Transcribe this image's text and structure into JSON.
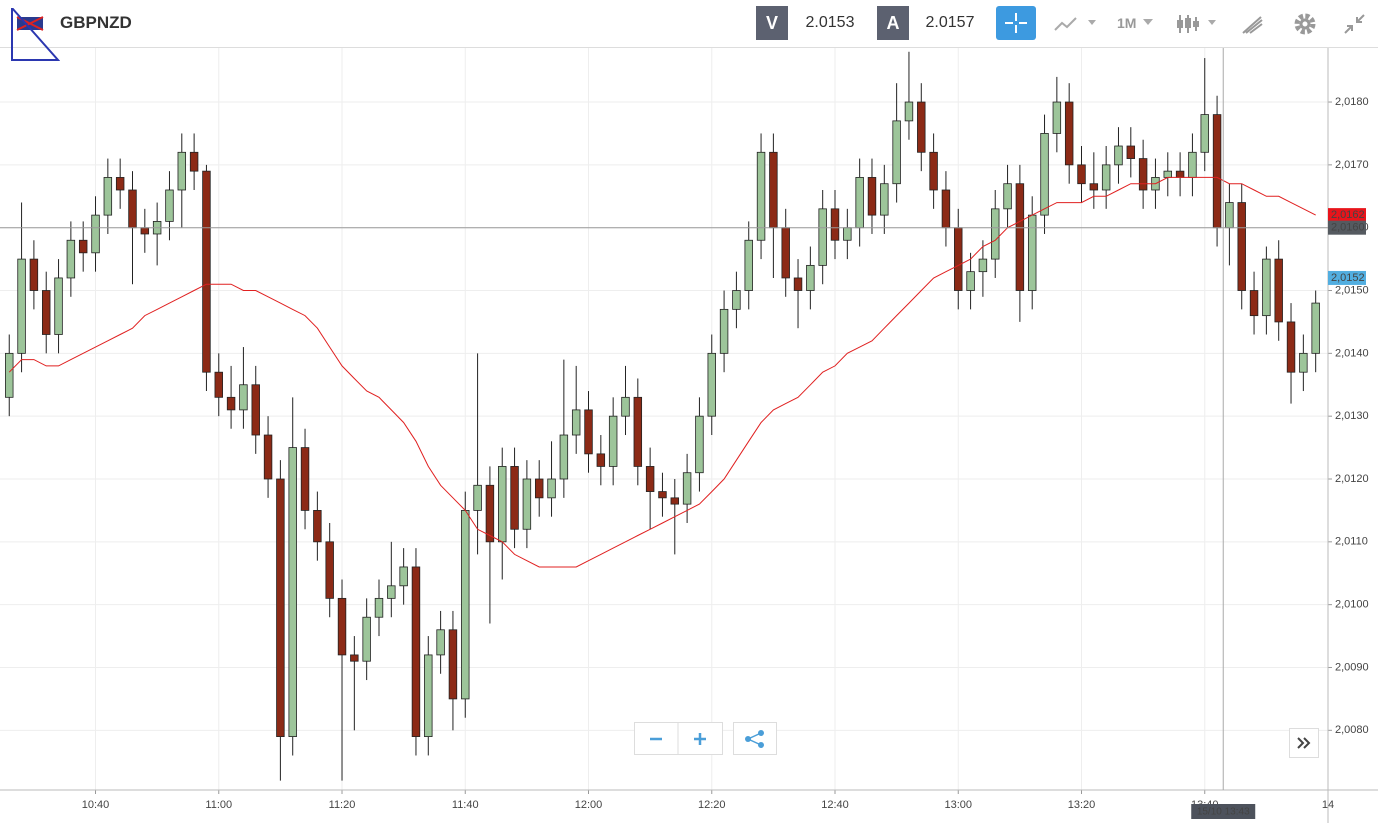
{
  "toolbar": {
    "symbol": "GBPNZD",
    "bid_label": "V",
    "bid": "2.0153",
    "ask_label": "A",
    "ask": "2.0157",
    "timeframe": "1M"
  },
  "chart_data": {
    "type": "candlestick",
    "x": [
      626,
      628,
      630,
      632,
      634,
      636,
      638,
      640,
      642,
      644,
      646,
      648,
      650,
      652,
      654,
      656,
      658,
      660,
      662,
      664,
      666,
      668,
      670,
      672,
      674,
      676,
      678,
      680,
      682,
      684,
      686,
      688,
      690,
      692,
      694,
      696,
      698,
      700,
      702,
      704,
      706,
      708,
      710,
      712,
      714,
      716,
      718,
      720,
      722,
      724,
      726,
      728,
      730,
      732,
      734,
      736,
      738,
      740,
      742,
      744,
      746,
      748,
      750,
      752,
      754,
      756,
      758,
      760,
      762,
      764,
      766,
      768,
      770,
      772,
      774,
      776,
      778,
      780,
      782,
      784,
      786,
      788,
      790,
      792,
      794,
      796,
      798,
      800,
      802,
      804,
      806,
      808,
      810,
      812,
      814,
      816,
      818,
      820,
      822,
      824,
      826,
      828,
      830,
      832,
      834,
      836,
      838
    ],
    "open": [
      2.0133,
      2.014,
      2.0155,
      2.015,
      2.0143,
      2.0152,
      2.0158,
      2.0156,
      2.0162,
      2.0168,
      2.0166,
      2.016,
      2.0159,
      2.0161,
      2.0166,
      2.0172,
      2.0169,
      2.0137,
      2.0133,
      2.0131,
      2.0135,
      2.0127,
      2.012,
      2.0079,
      2.0125,
      2.0115,
      2.011,
      2.0101,
      2.0092,
      2.0091,
      2.0098,
      2.0101,
      2.0103,
      2.0106,
      2.0079,
      2.0092,
      2.0096,
      2.0085,
      2.0115,
      2.0119,
      2.011,
      2.0122,
      2.0112,
      2.012,
      2.0117,
      2.012,
      2.0127,
      2.0131,
      2.0124,
      2.0122,
      2.013,
      2.0133,
      2.0122,
      2.0118,
      2.0117,
      2.0116,
      2.0121,
      2.013,
      2.014,
      2.0147,
      2.015,
      2.0158,
      2.0172,
      2.016,
      2.0152,
      2.015,
      2.0154,
      2.0163,
      2.0158,
      2.016,
      2.0168,
      2.0162,
      2.0167,
      2.0177,
      2.018,
      2.0172,
      2.0166,
      2.016,
      2.015,
      2.0153,
      2.0155,
      2.0163,
      2.0167,
      2.015,
      2.0162,
      2.0175,
      2.018,
      2.017,
      2.0167,
      2.0166,
      2.017,
      2.0173,
      2.0171,
      2.0166,
      2.0168,
      2.0169,
      2.0168,
      2.0172,
      2.0178,
      2.016,
      2.0164,
      2.015,
      2.0146,
      2.0155,
      2.0145,
      2.0137,
      2.014
    ],
    "high": [
      2.0143,
      2.0164,
      2.0158,
      2.0153,
      2.0155,
      2.0161,
      2.0161,
      2.0165,
      2.0171,
      2.0171,
      2.0169,
      2.0163,
      2.0164,
      2.0169,
      2.0175,
      2.0175,
      2.017,
      2.014,
      2.0138,
      2.0141,
      2.0138,
      2.013,
      2.0123,
      2.0133,
      2.0128,
      2.0118,
      2.0113,
      2.0104,
      2.0095,
      2.0101,
      2.0104,
      2.011,
      2.0109,
      2.0109,
      2.0095,
      2.0099,
      2.0099,
      2.0118,
      2.014,
      2.0122,
      2.0125,
      2.0125,
      2.0123,
      2.0123,
      2.0126,
      2.0139,
      2.0138,
      2.0134,
      2.0127,
      2.0133,
      2.0138,
      2.0136,
      2.0125,
      2.0121,
      2.012,
      2.0124,
      2.0133,
      2.0143,
      2.015,
      2.0153,
      2.0161,
      2.0175,
      2.0175,
      2.0163,
      2.0155,
      2.0157,
      2.0166,
      2.0166,
      2.0163,
      2.0171,
      2.0171,
      2.017,
      2.0183,
      2.0188,
      2.0183,
      2.0175,
      2.0169,
      2.0163,
      2.0156,
      2.0158,
      2.0166,
      2.017,
      2.017,
      2.0165,
      2.0178,
      2.0184,
      2.0183,
      2.0173,
      2.0172,
      2.0173,
      2.0176,
      2.0176,
      2.0174,
      2.0171,
      2.0172,
      2.0172,
      2.0175,
      2.0187,
      2.0181,
      2.0167,
      2.0167,
      2.0153,
      2.0157,
      2.0158,
      2.0148,
      2.0143,
      2.015
    ],
    "low": [
      2.013,
      2.0137,
      2.0147,
      2.014,
      2.014,
      2.0149,
      2.0153,
      2.0153,
      2.0159,
      2.0163,
      2.0151,
      2.0156,
      2.0154,
      2.0158,
      2.016,
      2.0166,
      2.0134,
      2.013,
      2.0128,
      2.0128,
      2.0124,
      2.0117,
      2.0072,
      2.0076,
      2.0112,
      2.0107,
      2.0098,
      2.0072,
      2.008,
      2.0088,
      2.0095,
      2.0098,
      2.01,
      2.0076,
      2.0076,
      2.0089,
      2.008,
      2.0082,
      2.0108,
      2.0097,
      2.0104,
      2.0109,
      2.0109,
      2.0114,
      2.0114,
      2.0117,
      2.0124,
      2.0121,
      2.0119,
      2.0119,
      2.0127,
      2.0119,
      2.0112,
      2.0114,
      2.0108,
      2.0113,
      2.0118,
      2.0127,
      2.0137,
      2.0144,
      2.0147,
      2.0155,
      2.0152,
      2.0149,
      2.0144,
      2.0147,
      2.0151,
      2.0155,
      2.0155,
      2.0157,
      2.0159,
      2.0159,
      2.0164,
      2.0174,
      2.0169,
      2.0163,
      2.0157,
      2.0147,
      2.0147,
      2.0149,
      2.0152,
      2.016,
      2.0145,
      2.0147,
      2.0159,
      2.0172,
      2.0167,
      2.0164,
      2.0163,
      2.0163,
      2.0167,
      2.0168,
      2.0163,
      2.0163,
      2.0165,
      2.0165,
      2.0165,
      2.0169,
      2.0157,
      2.0154,
      2.0147,
      2.0143,
      2.0143,
      2.0142,
      2.0132,
      2.0134,
      2.0137
    ],
    "close": [
      2.014,
      2.0155,
      2.015,
      2.0143,
      2.0152,
      2.0158,
      2.0156,
      2.0162,
      2.0168,
      2.0166,
      2.016,
      2.0159,
      2.0161,
      2.0166,
      2.0172,
      2.0169,
      2.0137,
      2.0133,
      2.0131,
      2.0135,
      2.0127,
      2.012,
      2.0079,
      2.0125,
      2.0115,
      2.011,
      2.0101,
      2.0092,
      2.0091,
      2.0098,
      2.0101,
      2.0103,
      2.0106,
      2.0079,
      2.0092,
      2.0096,
      2.0085,
      2.0115,
      2.0119,
      2.011,
      2.0122,
      2.0112,
      2.012,
      2.0117,
      2.012,
      2.0127,
      2.0131,
      2.0124,
      2.0122,
      2.013,
      2.0133,
      2.0122,
      2.0118,
      2.0117,
      2.0116,
      2.0121,
      2.013,
      2.014,
      2.0147,
      2.015,
      2.0158,
      2.0172,
      2.016,
      2.0152,
      2.015,
      2.0154,
      2.0163,
      2.0158,
      2.016,
      2.0168,
      2.0162,
      2.0167,
      2.0177,
      2.018,
      2.0172,
      2.0166,
      2.016,
      2.015,
      2.0153,
      2.0155,
      2.0163,
      2.0167,
      2.015,
      2.0162,
      2.0175,
      2.018,
      2.017,
      2.0167,
      2.0166,
      2.017,
      2.0173,
      2.0171,
      2.0166,
      2.0168,
      2.0169,
      2.0168,
      2.0172,
      2.0178,
      2.016,
      2.0164,
      2.015,
      2.0146,
      2.0155,
      2.0145,
      2.0137,
      2.014,
      2.0148
    ],
    "up_color": "#9dc59a",
    "down_color": "#8c2a16",
    "moving_average": {
      "color": "#e02020",
      "values": [
        2.0137,
        2.0139,
        2.0139,
        2.0138,
        2.0138,
        2.0139,
        2.014,
        2.0141,
        2.0142,
        2.0143,
        2.0144,
        2.0146,
        2.0147,
        2.0148,
        2.0149,
        2.015,
        2.0151,
        2.0151,
        2.0151,
        2.015,
        2.015,
        2.0149,
        2.0148,
        2.0147,
        2.0146,
        2.0144,
        2.0141,
        2.0138,
        2.0136,
        2.0134,
        2.0133,
        2.0131,
        2.0129,
        2.0126,
        2.0122,
        2.0119,
        2.0117,
        2.0115,
        2.0112,
        2.0111,
        2.011,
        2.0108,
        2.0107,
        2.0106,
        2.0106,
        2.0106,
        2.0106,
        2.0107,
        2.0108,
        2.0109,
        2.011,
        2.0111,
        2.0112,
        2.0113,
        2.0114,
        2.0115,
        2.0116,
        2.0118,
        2.012,
        2.0123,
        2.0126,
        2.0129,
        2.0131,
        2.0132,
        2.0133,
        2.0135,
        2.0137,
        2.0138,
        2.014,
        2.0141,
        2.0142,
        2.0144,
        2.0146,
        2.0148,
        2.015,
        2.0152,
        2.0153,
        2.0154,
        2.0155,
        2.0157,
        2.0158,
        2.016,
        2.0161,
        2.0162,
        2.0163,
        2.0164,
        2.0164,
        2.0164,
        2.0165,
        2.0165,
        2.0166,
        2.0167,
        2.0167,
        2.0167,
        2.0168,
        2.0168,
        2.0168,
        2.0168,
        2.0168,
        2.0167,
        2.0167,
        2.0166,
        2.0165,
        2.0165,
        2.0164,
        2.0163,
        2.0162
      ]
    },
    "xlim": [
      624.5,
      840
    ],
    "xticks": [
      {
        "value": 640,
        "label": "10:40"
      },
      {
        "value": 660,
        "label": "11:00"
      },
      {
        "value": 680,
        "label": "11:20"
      },
      {
        "value": 700,
        "label": "11:40"
      },
      {
        "value": 720,
        "label": "12:00"
      },
      {
        "value": 740,
        "label": "12:20"
      },
      {
        "value": 760,
        "label": "12:40"
      },
      {
        "value": 780,
        "label": "13:00"
      },
      {
        "value": 800,
        "label": "13:20"
      },
      {
        "value": 820,
        "label": "13:40"
      },
      {
        "value": 840,
        "label": "14"
      }
    ],
    "ylim": [
      2.00705,
      2.01886
    ],
    "yticks": [
      {
        "value": 2.008,
        "label": "2,0080"
      },
      {
        "value": 2.009,
        "label": "2,0090"
      },
      {
        "value": 2.01,
        "label": "2,0100"
      },
      {
        "value": 2.011,
        "label": "2,0110"
      },
      {
        "value": 2.012,
        "label": "2,0120"
      },
      {
        "value": 2.013,
        "label": "2,0130"
      },
      {
        "value": 2.014,
        "label": "2,0140"
      },
      {
        "value": 2.015,
        "label": "2,0150"
      },
      {
        "value": 2.016,
        "label": "2,0160"
      },
      {
        "value": 2.017,
        "label": "2,0170"
      },
      {
        "value": 2.018,
        "label": "2,0180"
      }
    ],
    "grid": true,
    "price_markers": [
      {
        "value": 2.0162,
        "label": "2,0162",
        "color": "#e8141b"
      },
      {
        "value": 2.016,
        "label": "2,0160",
        "color": "#555a60"
      },
      {
        "value": 2.0152,
        "label": "2,0152",
        "color": "#52aee0"
      }
    ],
    "crosshair": {
      "x": 823,
      "label": "15/10 13:43"
    }
  }
}
